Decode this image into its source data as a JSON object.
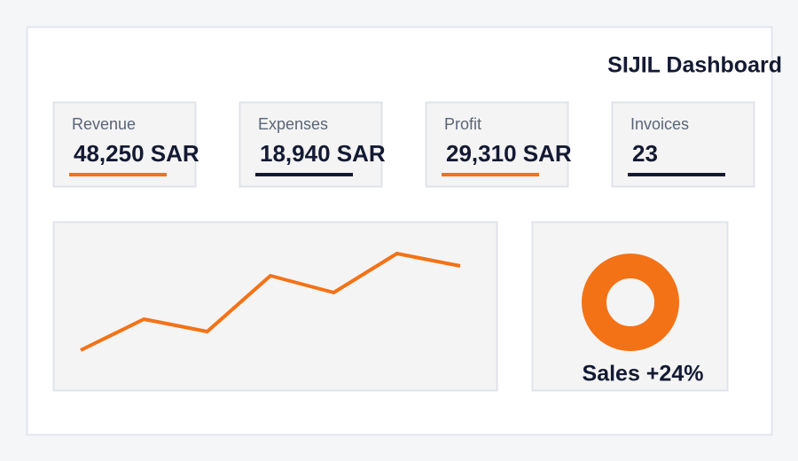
{
  "header": {
    "title": "SIJIL Dashboard"
  },
  "cards": [
    {
      "label": "Revenue",
      "value": "48,250 SAR",
      "accent": "#f47216"
    },
    {
      "label": "Expenses",
      "value": "18,940 SAR",
      "accent": "#141a33"
    },
    {
      "label": "Profit",
      "value": "29,310 SAR",
      "accent": "#f47216"
    },
    {
      "label": "Invoices",
      "value": "23",
      "accent": "#141a33"
    }
  ],
  "trend": {
    "type": "line",
    "color": "#f47216",
    "values": [
      45,
      80,
      66,
      129,
      110,
      154,
      140
    ]
  },
  "donut": {
    "label": "Sales +24%",
    "color": "#f47216"
  }
}
